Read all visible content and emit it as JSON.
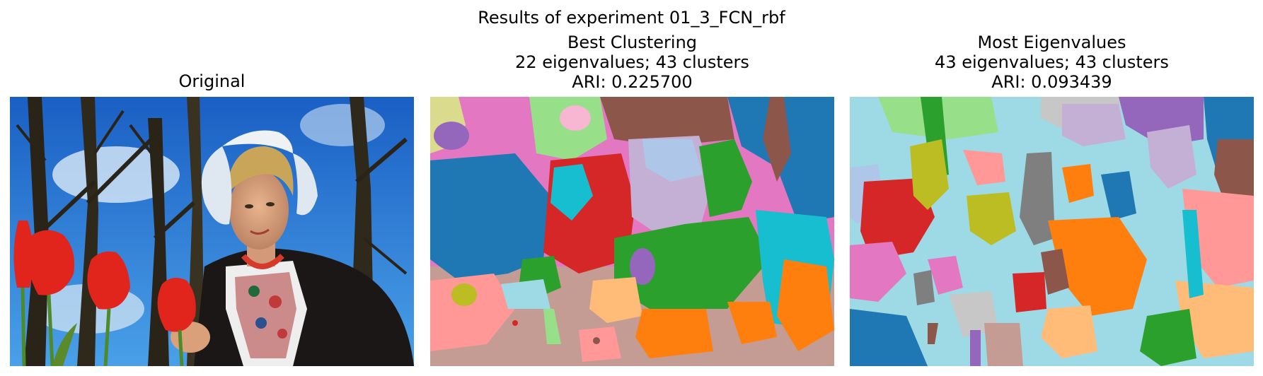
{
  "figure": {
    "suptitle": "Results of experiment 01_3_FCN_rbf"
  },
  "panels": [
    {
      "title_lines": [
        "Original"
      ]
    },
    {
      "title_lines": [
        "Best Clustering",
        "22 eigenvalues; 43 clusters",
        "ARI: 0.225700"
      ]
    },
    {
      "title_lines": [
        "Most Eigenvalues",
        "43 eigenvalues; 43 clusters",
        "ARI: 0.093439"
      ]
    }
  ],
  "palette": {
    "blue": "#1f77b4",
    "light_blue": "#9edae5",
    "orange": "#ff7f0e",
    "light_orange": "#ffbb78",
    "green": "#2ca02c",
    "light_green": "#98df8a",
    "red": "#d62728",
    "pink_red": "#ff9896",
    "purple": "#9467bd",
    "lavender": "#c5b0d5",
    "brown": "#8c564b",
    "tan": "#c49c94",
    "pink": "#e377c2",
    "light_pink": "#f7b6d2",
    "gray": "#7f7f7f",
    "light_gray": "#c7c7c7",
    "olive": "#bcbd22",
    "khaki": "#dbdb8d",
    "cyan": "#17becf",
    "periwinkle": "#aec7e8"
  }
}
